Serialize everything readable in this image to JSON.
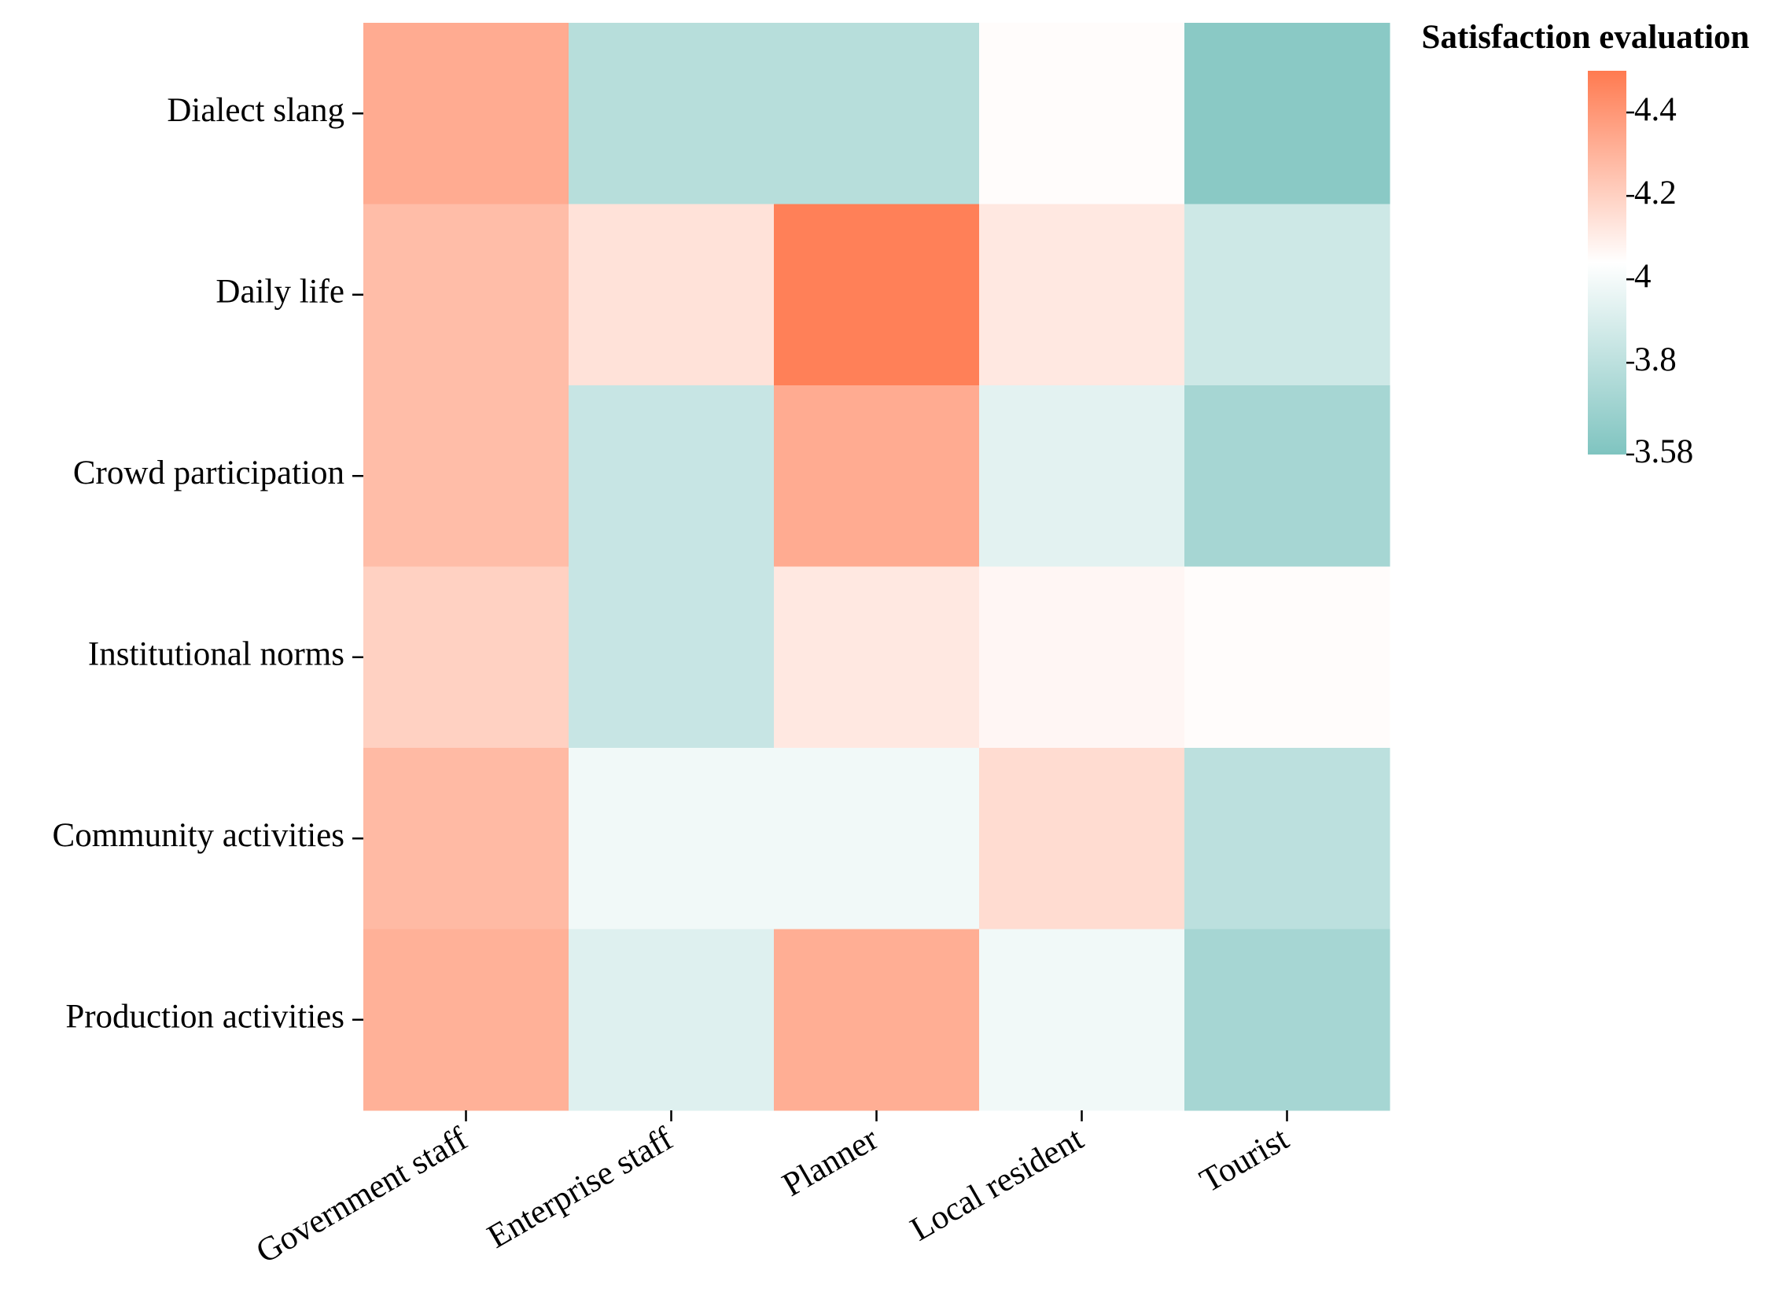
{
  "chart_data": {
    "type": "heatmap",
    "legend_title": "Satisfaction evaluation",
    "categories": [
      "Government staff",
      "Enterprise staff",
      "Planner",
      "Local resident",
      "Tourist"
    ],
    "y_categories": [
      "Dialect slang",
      "Daily life",
      "Crowd participation",
      "Institutional norms",
      "Community activities",
      "Production activities"
    ],
    "values": [
      [
        4.33,
        3.78,
        3.78,
        4.05,
        3.62
      ],
      [
        4.27,
        4.14,
        4.48,
        4.12,
        3.86
      ],
      [
        4.27,
        3.84,
        4.33,
        3.94,
        3.72
      ],
      [
        4.2,
        3.84,
        4.12,
        4.07,
        4.05
      ],
      [
        4.28,
        3.99,
        3.99,
        4.16,
        3.8
      ],
      [
        4.31,
        3.92,
        4.32,
        3.99,
        3.72
      ]
    ],
    "colors": [
      "#7fc4c0",
      "#ffffff",
      "#ff7a50"
    ],
    "clim": [
      3.58,
      4.5
    ],
    "cticks": [
      4.4,
      4.2,
      4,
      3.8,
      3.58
    ]
  }
}
